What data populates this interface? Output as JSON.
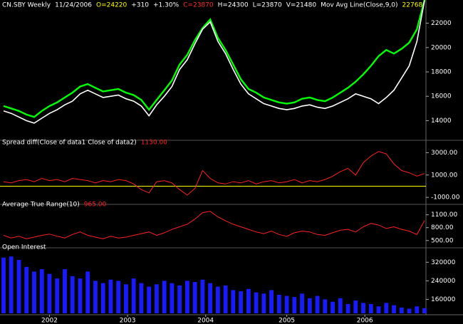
{
  "chart_data": [
    {
      "type": "line",
      "title": "CN.SBY Weekly",
      "header": [
        {
          "text": "11/24/2006",
          "color": "#ffffff"
        },
        {
          "text": "O=24220",
          "color": "#ffff00"
        },
        {
          "text": "+310",
          "color": "#ffffff"
        },
        {
          "text": "+1.30%",
          "color": "#ffffff"
        },
        {
          "text": "C=23870",
          "color": "#ff3030"
        },
        {
          "text": "H=24300",
          "color": "#ffffff"
        },
        {
          "text": "L=23870",
          "color": "#ffffff"
        },
        {
          "text": "V=21480",
          "color": "#ffffff"
        },
        {
          "text": "Mov Avg Line(Close,9,0)",
          "color": "#ffffff"
        },
        {
          "text": "22768",
          "color": "#ffff00"
        }
      ],
      "ylim": [
        12800,
        23200
      ],
      "yticks": [
        14000,
        16000,
        18000,
        20000,
        22000
      ],
      "series": [
        {
          "color": "#00ff00",
          "values": [
            15200,
            15000,
            14800,
            14500,
            14300,
            14800,
            15200,
            15500,
            15900,
            16300,
            16800,
            17000,
            16700,
            16400,
            16500,
            16600,
            16300,
            16100,
            15700,
            14900,
            15700,
            16500,
            17300,
            18600,
            19400,
            20600,
            21600,
            22300,
            20800,
            19800,
            18600,
            17400,
            16600,
            16300,
            15900,
            15700,
            15500,
            15400,
            15500,
            15800,
            15900,
            15700,
            15600,
            15900,
            16300,
            16700,
            17200,
            17800,
            18500,
            19300,
            19800,
            19500,
            19900,
            20400,
            21500,
            23900
          ]
        },
        {
          "color": "#ffffff",
          "values": [
            14800,
            14600,
            14300,
            14000,
            13800,
            14200,
            14600,
            14900,
            15300,
            15600,
            16200,
            16500,
            16200,
            15900,
            16000,
            16100,
            15800,
            15600,
            15200,
            14400,
            15300,
            16000,
            16800,
            18200,
            19000,
            20300,
            21500,
            22100,
            20500,
            19500,
            18200,
            17000,
            16200,
            15800,
            15400,
            15200,
            15000,
            14900,
            15000,
            15200,
            15300,
            15100,
            15000,
            15200,
            15500,
            15800,
            16200,
            16000,
            15800,
            15400,
            15900,
            16500,
            17500,
            18500,
            20500,
            23870
          ]
        }
      ]
    },
    {
      "type": "line",
      "title": "Spread diff(Close of data1 Close of data2)",
      "last_label": "1130.00",
      "ylim": [
        -1500,
        3600
      ],
      "yticks": [
        {
          "value": 3000,
          "label": "3000.00"
        },
        {
          "value": 1000,
          "label": "1000.00"
        },
        {
          "value": -1000,
          "label": "-1000.00"
        }
      ],
      "zero_line_color": "#ffff00",
      "series": [
        {
          "color": "#ff2020",
          "values": [
            400,
            300,
            500,
            600,
            400,
            700,
            500,
            600,
            400,
            700,
            600,
            500,
            300,
            500,
            400,
            600,
            500,
            200,
            -300,
            -600,
            400,
            500,
            300,
            -300,
            -800,
            -200,
            1400,
            700,
            300,
            200,
            400,
            300,
            500,
            200,
            400,
            500,
            300,
            400,
            600,
            300,
            500,
            400,
            600,
            900,
            1300,
            1600,
            1000,
            2100,
            2700,
            3100,
            2900,
            2000,
            1400,
            1200,
            900,
            1130
          ]
        }
      ]
    },
    {
      "type": "line",
      "title": "Average True Range(10)",
      "last_label": "965.00",
      "ylim": [
        380,
        1260
      ],
      "yticks": [
        {
          "value": 1100,
          "label": "1100.00"
        },
        {
          "value": 800,
          "label": "800.00"
        },
        {
          "value": 500,
          "label": "500.00"
        }
      ],
      "series": [
        {
          "color": "#ff2020",
          "values": [
            620,
            560,
            600,
            540,
            580,
            620,
            650,
            600,
            560,
            640,
            700,
            620,
            580,
            540,
            600,
            560,
            580,
            620,
            660,
            700,
            620,
            680,
            760,
            820,
            880,
            1000,
            1150,
            1180,
            1050,
            960,
            880,
            820,
            760,
            700,
            660,
            720,
            640,
            600,
            680,
            720,
            700,
            640,
            620,
            680,
            740,
            760,
            700,
            820,
            900,
            860,
            780,
            820,
            760,
            720,
            640,
            965
          ]
        }
      ]
    },
    {
      "type": "bar",
      "title": "Open Interest",
      "ylim": [
        100000,
        370000
      ],
      "yticks": [
        320000,
        240000,
        160000
      ],
      "color": "#1a1aff",
      "values": [
        340000,
        345000,
        330000,
        300000,
        280000,
        290000,
        270000,
        250000,
        290000,
        260000,
        250000,
        280000,
        240000,
        230000,
        245000,
        240000,
        225000,
        250000,
        230000,
        215000,
        225000,
        240000,
        230000,
        220000,
        240000,
        235000,
        245000,
        230000,
        215000,
        220000,
        200000,
        195000,
        205000,
        190000,
        185000,
        200000,
        180000,
        175000,
        170000,
        185000,
        165000,
        175000,
        160000,
        150000,
        165000,
        140000,
        155000,
        145000,
        140000,
        130000,
        145000,
        135000,
        125000,
        120000,
        130000,
        122000
      ],
      "xlim": [
        0,
        55
      ],
      "xticks": [
        {
          "value": 6,
          "label": "2002"
        },
        {
          "value": 16.2,
          "label": "2003"
        },
        {
          "value": 26.4,
          "label": "2004"
        },
        {
          "value": 37,
          "label": "2005"
        },
        {
          "value": 47.2,
          "label": "2006"
        }
      ]
    }
  ]
}
